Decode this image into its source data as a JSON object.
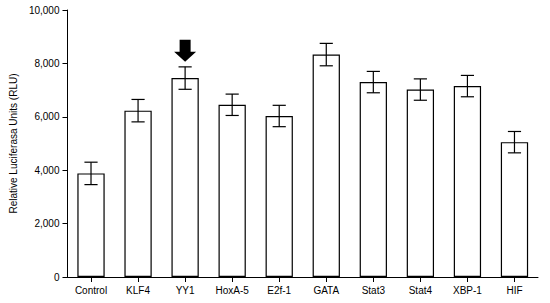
{
  "chart_data": {
    "type": "bar",
    "y_label": "Relative Luciferasa Units (RLU)",
    "categories": [
      "Control",
      "KLF4",
      "YY1",
      "HoxA-5",
      "E2f-1",
      "GATA",
      "Stat3",
      "Stat4",
      "XBP-1",
      "HIF"
    ],
    "values": [
      3880,
      6230,
      7450,
      6450,
      6030,
      8330,
      7300,
      7020,
      7150,
      5050
    ],
    "errors": [
      420,
      420,
      420,
      400,
      400,
      420,
      400,
      400,
      400,
      400
    ],
    "color": "#ffffff",
    "ylim": [
      0,
      10000
    ],
    "yticks": [
      0,
      2000,
      4000,
      6000,
      8000,
      10000
    ],
    "grid": false
  }
}
